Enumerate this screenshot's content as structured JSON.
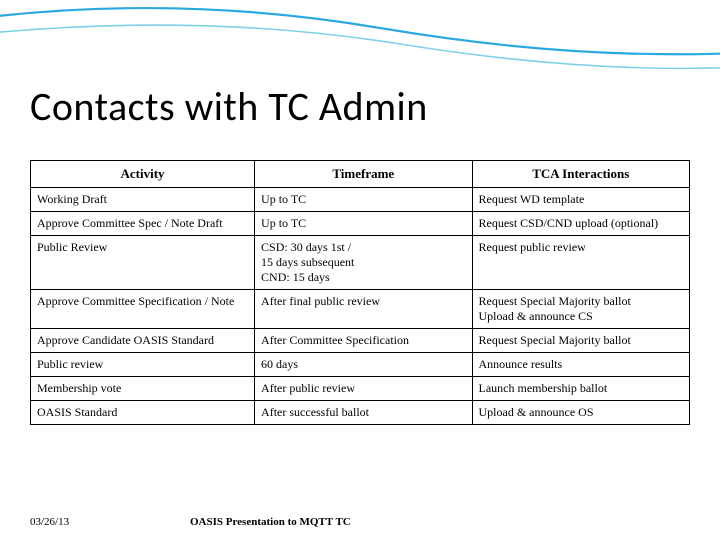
{
  "slide": {
    "title": "Contacts with TC Admin",
    "footer_date": "03/26/13",
    "footer_text": "OASIS Presentation to MQTT TC"
  },
  "decoration": {
    "line1_color": "#2aa9e0",
    "line2_color": "#7fd0e8",
    "line1_width": 2.2,
    "line2_width": 1.6
  },
  "table": {
    "columns": [
      "Activity",
      "Timeframe",
      "TCA Interactions"
    ],
    "rows": [
      [
        "Working Draft",
        "Up to TC",
        "Request WD template"
      ],
      [
        "Approve Committee Spec / Note Draft",
        "Up to TC",
        "Request CSD/CND upload (optional)"
      ],
      [
        "Public Review",
        "CSD: 30 days 1st /\n15 days subsequent\nCND: 15 days",
        "Request public review"
      ],
      [
        "Approve Committee Specification / Note",
        "After final public review",
        "Request Special Majority ballot\nUpload & announce CS"
      ],
      [
        "Approve Candidate OASIS Standard",
        "After Committee Specification",
        "Request Special Majority ballot"
      ],
      [
        "Public review",
        "60 days",
        "Announce results"
      ],
      [
        "Membership vote",
        "After public review",
        "Launch membership ballot"
      ],
      [
        "OASIS Standard",
        "After successful ballot",
        "Upload & announce OS"
      ]
    ],
    "border_color": "#000000",
    "header_fontsize": 13,
    "cell_fontsize": 12,
    "background": "#ffffff"
  },
  "typography": {
    "title_font": "Calibri",
    "title_size_pt": 40,
    "body_font": "Georgia",
    "footer_size_pt": 11
  }
}
